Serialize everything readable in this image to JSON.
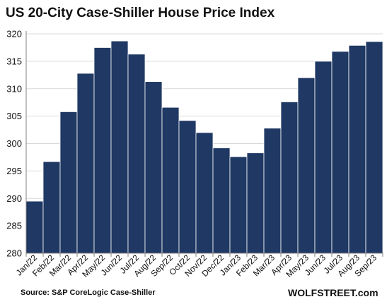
{
  "title": "US 20-City Case-Shiller House Price Index",
  "source": "Source: S&P CoreLogic Case-Shiller",
  "watermark": "WOLFSTREET.com",
  "colors": {
    "bar_fill": "#1f3864",
    "bar_stroke": "#ffffff",
    "grid": "#d9d9d9",
    "axis": "#808080",
    "text": "#111111"
  },
  "chart_data": {
    "type": "bar",
    "title": "US 20-City Case-Shiller House Price Index",
    "categories": [
      "Jan/22",
      "Feb/22",
      "Mar/22",
      "Apr/22",
      "May/22",
      "Jun/22",
      "Jul/22",
      "Aug/22",
      "Sep/22",
      "Oct/22",
      "Nov/22",
      "Dec/22",
      "Jan/23",
      "Feb/23",
      "Mar/23",
      "Apr/23",
      "May/23",
      "Jun/23",
      "Jul/23",
      "Aug/23",
      "Sep/23"
    ],
    "values": [
      289.5,
      296.7,
      305.8,
      312.8,
      317.5,
      318.7,
      316.3,
      311.3,
      306.6,
      304.2,
      302.0,
      299.2,
      297.6,
      298.3,
      302.8,
      307.6,
      312.0,
      315.0,
      316.8,
      317.9,
      318.6
    ],
    "ylim": [
      280,
      320
    ],
    "yticks": [
      280,
      285,
      290,
      295,
      300,
      305,
      310,
      315,
      320
    ],
    "xlabel": "",
    "ylabel": "",
    "grid": true,
    "legend": "none"
  }
}
